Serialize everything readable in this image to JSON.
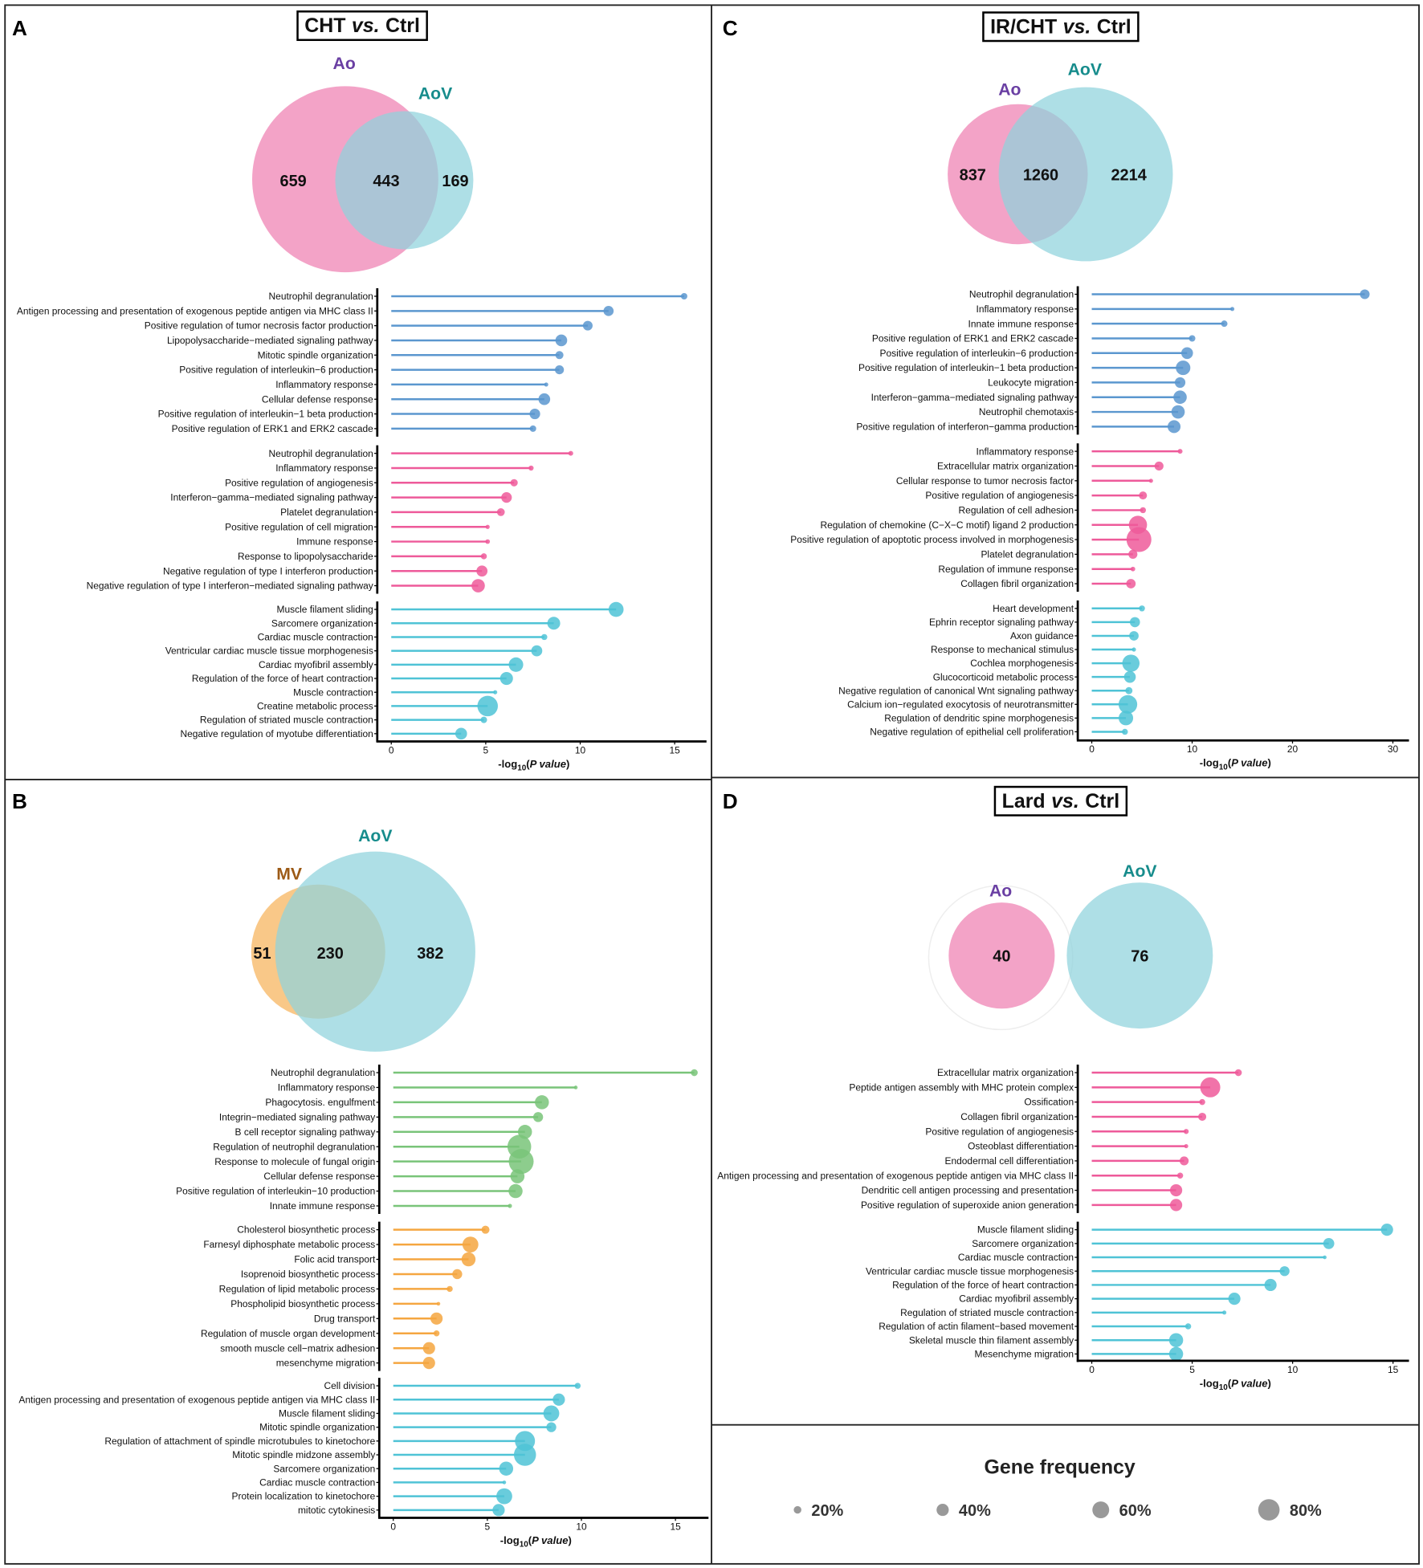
{
  "colors": {
    "blue": "#5b97cf",
    "pink": "#ee5a9a",
    "cyan": "#4fc3d6",
    "green": "#79c479",
    "orange": "#f5a640",
    "venn_pink": "#ee7fb2",
    "venn_cyan": "#8fd3dd",
    "venn_orange": "#f7b35a",
    "ao_label": "#6a3fa3",
    "aov_label": "#178c8c",
    "mv_label": "#9c5a16"
  },
  "chart_data": [
    {
      "panel": "A",
      "type": "lollipop",
      "title": [
        "CHT",
        "vs.",
        "Ctrl"
      ],
      "venn": {
        "sets": [
          {
            "name": "Ao",
            "only": 659
          },
          {
            "name": "AoV",
            "only": 169
          }
        ],
        "overlap": 443
      },
      "xlabel": {
        "prefix": "-log",
        "sub": "10",
        "italic": "P value"
      },
      "xlim": [
        0,
        17
      ],
      "xticks": [
        "0",
        "5",
        "10",
        "15"
      ],
      "groups": [
        {
          "color": "blue",
          "terms": [
            {
              "term": "Neutrophil degranulation",
              "value": 15.5,
              "freq": 15
            },
            {
              "term": "Antigen processing and presentation of exogenous peptide antigen via MHC class II",
              "value": 11.5,
              "freq": 31
            },
            {
              "term": "Positive regulation of tumor necrosis factor production",
              "value": 10.4,
              "freq": 29
            },
            {
              "term": "Lipopolysaccharide−mediated signaling pathway",
              "value": 9.0,
              "freq": 38
            },
            {
              "term": "Mitotic spindle organization",
              "value": 8.9,
              "freq": 22
            },
            {
              "term": "Positive regulation of interleukin−6 production",
              "value": 8.9,
              "freq": 26
            },
            {
              "term": "Inflammatory response",
              "value": 8.2,
              "freq": 5
            },
            {
              "term": "Cellular defense response",
              "value": 8.1,
              "freq": 38
            },
            {
              "term": "Positive regulation of interleukin−1 beta production",
              "value": 7.6,
              "freq": 33
            },
            {
              "term": "Positive regulation of ERK1 and ERK2 cascade",
              "value": 7.5,
              "freq": 15
            }
          ]
        },
        {
          "color": "pink",
          "terms": [
            {
              "term": "Neutrophil degranulation",
              "value": 9.5,
              "freq": 8
            },
            {
              "term": "Inflammatory response",
              "value": 7.4,
              "freq": 9
            },
            {
              "term": "Positive regulation of angiogenesis",
              "value": 6.5,
              "freq": 19
            },
            {
              "term": "Interferon−gamma−mediated signaling pathway",
              "value": 6.1,
              "freq": 33
            },
            {
              "term": "Platelet degranulation",
              "value": 5.8,
              "freq": 21
            },
            {
              "term": "Positive regulation of cell migration",
              "value": 5.1,
              "freq": 5
            },
            {
              "term": "Immune response",
              "value": 5.1,
              "freq": 7
            },
            {
              "term": "Response to lipopolysaccharide",
              "value": 4.9,
              "freq": 13
            },
            {
              "term": "Negative regulation of type I interferon production",
              "value": 4.8,
              "freq": 35
            },
            {
              "term": "Negative regulation of type I interferon−mediated signaling pathway",
              "value": 4.6,
              "freq": 45
            }
          ]
        },
        {
          "color": "cyan",
          "terms": [
            {
              "term": "Muscle filament sliding",
              "value": 11.9,
              "freq": 52
            },
            {
              "term": "Sarcomere organization",
              "value": 8.6,
              "freq": 43
            },
            {
              "term": "Cardiac muscle contraction",
              "value": 8.1,
              "freq": 13
            },
            {
              "term": "Ventricular cardiac muscle tissue morphogenesis",
              "value": 7.7,
              "freq": 35
            },
            {
              "term": "Cardiac myofibril assembly",
              "value": 6.6,
              "freq": 50
            },
            {
              "term": "Regulation of the force of heart contraction",
              "value": 6.1,
              "freq": 43
            },
            {
              "term": "Muscle contraction",
              "value": 5.5,
              "freq": 5
            },
            {
              "term": "Creatine metabolic process",
              "value": 5.1,
              "freq": 76
            },
            {
              "term": "Regulation of striated muscle contraction",
              "value": 4.9,
              "freq": 15
            },
            {
              "term": "Negative regulation of myotube differentiation",
              "value": 3.7,
              "freq": 38
            }
          ]
        }
      ]
    },
    {
      "panel": "B",
      "type": "lollipop",
      "title": null,
      "venn": {
        "sets": [
          {
            "name": "MV",
            "only": 51
          },
          {
            "name": "AoV",
            "only": 382
          }
        ],
        "overlap": 230
      },
      "xlabel": {
        "prefix": "-log",
        "sub": "10",
        "italic": "P value"
      },
      "xlim": [
        0,
        17
      ],
      "xticks": [
        "0",
        "5",
        "10",
        "15"
      ],
      "groups": [
        {
          "color": "green",
          "terms": [
            {
              "term": "Neutrophil degranulation",
              "value": 16.0,
              "freq": 17
            },
            {
              "term": "Inflammatory response",
              "value": 9.7,
              "freq": 3
            },
            {
              "term": "Phagocytosis. engulfment",
              "value": 7.9,
              "freq": 48
            },
            {
              "term": "Integrin−mediated signaling pathway",
              "value": 7.7,
              "freq": 30
            },
            {
              "term": "B cell receptor signaling pathway",
              "value": 7.0,
              "freq": 48
            },
            {
              "term": "Regulation of neutrophil degranulation",
              "value": 6.7,
              "freq": 90
            },
            {
              "term": "Response to molecule of fungal origin",
              "value": 6.8,
              "freq": 95
            },
            {
              "term": "Cellular defense response",
              "value": 6.6,
              "freq": 48
            },
            {
              "term": "Positive regulation of interleukin−10 production",
              "value": 6.5,
              "freq": 48
            },
            {
              "term": "Innate immune response",
              "value": 6.2,
              "freq": 5
            }
          ]
        },
        {
          "color": "orange",
          "terms": [
            {
              "term": "Cholesterol biosynthetic process",
              "value": 4.9,
              "freq": 22
            },
            {
              "term": "Farnesyl diphosphate metabolic process",
              "value": 4.1,
              "freq": 56
            },
            {
              "term": "Folic acid transport",
              "value": 4.0,
              "freq": 48
            },
            {
              "term": "Isoprenoid biosynthetic process",
              "value": 3.4,
              "freq": 30
            },
            {
              "term": "Regulation of lipid metabolic process",
              "value": 3.0,
              "freq": 13
            },
            {
              "term": "Phospholipid biosynthetic process",
              "value": 2.4,
              "freq": 3
            },
            {
              "term": "Drug transport",
              "value": 2.3,
              "freq": 40
            },
            {
              "term": "Regulation of muscle organ development",
              "value": 2.3,
              "freq": 13
            },
            {
              "term": "smooth muscle cell−matrix adhesion",
              "value": 1.9,
              "freq": 40
            },
            {
              "term": "mesenchyme migration",
              "value": 1.9,
              "freq": 40
            }
          ]
        },
        {
          "color": "cyan",
          "terms": [
            {
              "term": "Cell division",
              "value": 9.8,
              "freq": 13
            },
            {
              "term": "Antigen processing and presentation of exogenous peptide antigen via MHC class II",
              "value": 8.8,
              "freq": 40
            },
            {
              "term": "Muscle filament sliding",
              "value": 8.4,
              "freq": 56
            },
            {
              "term": "Mitotic spindle organization",
              "value": 8.4,
              "freq": 30
            },
            {
              "term": "Regulation of attachment of spindle microtubules to kinetochore",
              "value": 7.0,
              "freq": 74
            },
            {
              "term": "Mitotic spindle midzone assembly",
              "value": 7.0,
              "freq": 83
            },
            {
              "term": "Sarcomere organization",
              "value": 6.0,
              "freq": 48
            },
            {
              "term": "Cardiac muscle contraction",
              "value": 5.9,
              "freq": 3
            },
            {
              "term": "Protein localization to kinetochore",
              "value": 5.9,
              "freq": 56
            },
            {
              "term": "mitotic cytokinesis",
              "value": 5.6,
              "freq": 40
            }
          ]
        }
      ]
    },
    {
      "panel": "C",
      "type": "lollipop",
      "title": [
        "IR/CHT",
        "vs.",
        "Ctrl"
      ],
      "venn": {
        "sets": [
          {
            "name": "Ao",
            "only": 837
          },
          {
            "name": "AoV",
            "only": 2214
          }
        ],
        "overlap": 1260
      },
      "xlabel": {
        "prefix": "-log",
        "sub": "10",
        "italic": "P value"
      },
      "xlim": [
        0,
        31
      ],
      "xticks": [
        "0",
        "10",
        "20",
        "30"
      ],
      "groups": [
        {
          "color": "blue",
          "terms": [
            {
              "term": "Neutrophil degranulation",
              "value": 27.2,
              "freq": 29
            },
            {
              "term": "Inflammatory response",
              "value": 14.0,
              "freq": 5
            },
            {
              "term": "Innate immune response",
              "value": 13.2,
              "freq": 15
            },
            {
              "term": "Positive regulation of ERK1 and ERK2 cascade",
              "value": 10.0,
              "freq": 15
            },
            {
              "term": "Positive regulation of interleukin−6 production",
              "value": 9.5,
              "freq": 38
            },
            {
              "term": "Positive regulation of interleukin−1 beta production",
              "value": 9.1,
              "freq": 50
            },
            {
              "term": "Leukocyte migration",
              "value": 8.8,
              "freq": 33
            },
            {
              "term": "Interferon−gamma−mediated signaling pathway",
              "value": 8.8,
              "freq": 45
            },
            {
              "term": "Neutrophil chemotaxis",
              "value": 8.6,
              "freq": 45
            },
            {
              "term": "Positive regulation of interferon−gamma production",
              "value": 8.2,
              "freq": 43
            }
          ]
        },
        {
          "color": "pink",
          "terms": [
            {
              "term": "Inflammatory response",
              "value": 8.8,
              "freq": 8
            },
            {
              "term": "Extracellular matrix organization",
              "value": 6.7,
              "freq": 26
            },
            {
              "term": "Cellular response to tumor necrosis factor",
              "value": 5.9,
              "freq": 5
            },
            {
              "term": "Positive regulation of angiogenesis",
              "value": 5.1,
              "freq": 22
            },
            {
              "term": "Regulation of cell adhesion",
              "value": 5.1,
              "freq": 13
            },
            {
              "term": "Regulation of chemokine (C−X−C motif) ligand 2 production",
              "value": 4.6,
              "freq": 66
            },
            {
              "term": "Positive regulation of apoptotic process involved in morphogenesis",
              "value": 4.7,
              "freq": 95
            },
            {
              "term": "Platelet degranulation",
              "value": 4.1,
              "freq": 26
            },
            {
              "term": "Regulation of immune response",
              "value": 4.1,
              "freq": 7
            },
            {
              "term": "Collagen fibril organization",
              "value": 3.9,
              "freq": 28
            }
          ]
        },
        {
          "color": "cyan",
          "terms": [
            {
              "term": "Heart development",
              "value": 5.0,
              "freq": 13
            },
            {
              "term": "Ephrin receptor signaling pathway",
              "value": 4.3,
              "freq": 31
            },
            {
              "term": "Axon guidance",
              "value": 4.2,
              "freq": 28
            },
            {
              "term": "Response to mechanical stimulus",
              "value": 4.2,
              "freq": 5
            },
            {
              "term": "Cochlea morphogenesis",
              "value": 3.9,
              "freq": 62
            },
            {
              "term": "Glucocorticoid metabolic process",
              "value": 3.8,
              "freq": 38
            },
            {
              "term": "Negative regulation of canonical Wnt signaling pathway",
              "value": 3.7,
              "freq": 18
            },
            {
              "term": "Calcium ion−regulated exocytosis of neurotransmitter",
              "value": 3.6,
              "freq": 68
            },
            {
              "term": "Regulation of dendritic spine morphogenesis",
              "value": 3.4,
              "freq": 50
            },
            {
              "term": "Negative regulation of epithelial cell proliferation",
              "value": 3.3,
              "freq": 13
            }
          ]
        }
      ]
    },
    {
      "panel": "D",
      "type": "lollipop",
      "title": [
        "Lard",
        "vs.",
        "Ctrl"
      ],
      "venn": {
        "sets": [
          {
            "name": "Ao",
            "only": 40
          },
          {
            "name": "AoV",
            "only": 76
          }
        ],
        "overlap": null
      },
      "xlabel": {
        "prefix": "-log",
        "sub": "10",
        "italic": "P value"
      },
      "xlim": [
        0,
        15.6
      ],
      "xticks": [
        "0",
        "5",
        "10",
        "15"
      ],
      "groups": [
        {
          "color": "pink",
          "terms": [
            {
              "term": "Extracellular matrix organization",
              "value": 7.3,
              "freq": 17
            },
            {
              "term": "Peptide antigen assembly with MHC protein complex",
              "value": 5.9,
              "freq": 74
            },
            {
              "term": "Ossification",
              "value": 5.5,
              "freq": 13
            },
            {
              "term": "Collagen fibril organization",
              "value": 5.5,
              "freq": 22
            },
            {
              "term": "Positive regulation of angiogenesis",
              "value": 4.7,
              "freq": 9
            },
            {
              "term": "Osteoblast differentiation",
              "value": 4.7,
              "freq": 5
            },
            {
              "term": "Endodermal cell differentiation",
              "value": 4.6,
              "freq": 26
            },
            {
              "term": "Antigen processing and presentation of exogenous peptide antigen via MHC class II",
              "value": 4.4,
              "freq": 13
            },
            {
              "term": "Dendritic cell antigen processing and presentation",
              "value": 4.2,
              "freq": 40
            },
            {
              "term": "Positive regulation of superoxide anion generation",
              "value": 4.2,
              "freq": 40
            }
          ]
        },
        {
          "color": "cyan",
          "terms": [
            {
              "term": "Muscle filament sliding",
              "value": 14.7,
              "freq": 40
            },
            {
              "term": "Sarcomere organization",
              "value": 11.8,
              "freq": 35
            },
            {
              "term": "Cardiac muscle contraction",
              "value": 11.6,
              "freq": 3
            },
            {
              "term": "Ventricular cardiac muscle tissue morphogenesis",
              "value": 9.6,
              "freq": 30
            },
            {
              "term": "Regulation of the force of heart contraction",
              "value": 8.9,
              "freq": 40
            },
            {
              "term": "Cardiac myofibril assembly",
              "value": 7.1,
              "freq": 40
            },
            {
              "term": "Regulation of striated muscle contraction",
              "value": 6.6,
              "freq": 5
            },
            {
              "term": "Regulation of actin filament−based movement",
              "value": 4.8,
              "freq": 13
            },
            {
              "term": "Skeletal muscle thin filament assembly",
              "value": 4.2,
              "freq": 48
            },
            {
              "term": "Mesenchyme migration",
              "value": 4.2,
              "freq": 48
            }
          ]
        }
      ]
    }
  ],
  "legend": {
    "title": "Gene frequency",
    "items": [
      {
        "label": "20%",
        "freq": 20
      },
      {
        "label": "40%",
        "freq": 40
      },
      {
        "label": "60%",
        "freq": 60
      },
      {
        "label": "80%",
        "freq": 80
      }
    ]
  }
}
